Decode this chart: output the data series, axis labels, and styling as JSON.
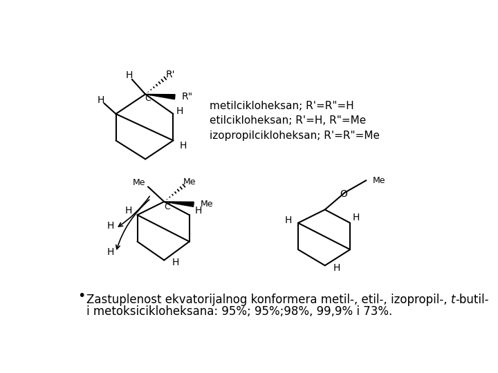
{
  "background_color": "#ffffff",
  "label1": "metilcikloheksan; R'=R\"=H",
  "label2": "etilcikloheksan; R'=H, R\"=Me",
  "label3": "izopropilcikloheksan; R'=R\"=Me",
  "bullet": "•",
  "text_line1a": "Zastuplenost ekvatorijalnog konformera metil-, etil-, izopropil-, ",
  "text_line1b": "t",
  "text_line1c": "-butil-",
  "text_line2": "i metoksicikloheksana: 95%; 95%;98%, 99,9% i 73%.",
  "lw": 1.5,
  "font_size_mol": 10,
  "font_size_label": 11,
  "font_size_text": 12
}
